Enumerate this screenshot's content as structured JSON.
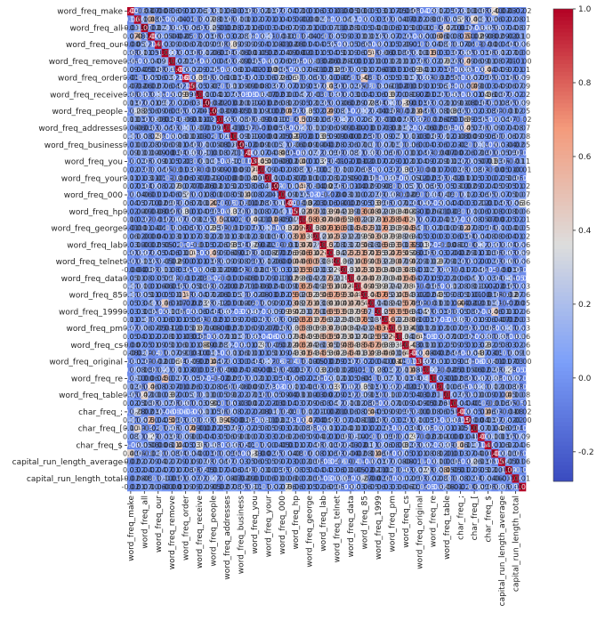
{
  "chart_data": {
    "type": "heatmap",
    "title": "",
    "colormap": "coolwarm",
    "vmin": -0.28,
    "vmax": 1.0,
    "annotated": true,
    "row_labels": [
      "word_freq_make",
      "word_freq_all",
      "word_freq_our",
      "word_freq_remove",
      "word_freq_order",
      "word_freq_receive",
      "word_freq_people",
      "word_freq_addresses",
      "word_freq_business",
      "word_freq_you",
      "word_freq_your",
      "word_freq_000",
      "word_freq_hp",
      "word_freq_george",
      "word_freq_lab",
      "word_freq_telnet",
      "word_freq_data",
      "word_freq_85",
      "word_freq_1999",
      "word_freq_pm",
      "word_freq_cs",
      "word_freq_original",
      "word_freq_re",
      "word_freq_table",
      "char_freq_;",
      "char_freq_[",
      "char_freq_$",
      "capital_run_length_average",
      "capital_run_length_total"
    ],
    "col_labels": [
      "word_freq_make",
      "word_freq_all",
      "word_freq_our",
      "word_freq_remove",
      "word_freq_order",
      "word_freq_receive",
      "word_freq_people",
      "word_freq_addresses",
      "word_freq_business",
      "word_freq_you",
      "word_freq_your",
      "word_freq_000",
      "word_freq_hp",
      "word_freq_george",
      "word_freq_lab",
      "word_freq_telnet",
      "word_freq_data",
      "word_freq_85",
      "word_freq_1999",
      "word_freq_pm",
      "word_freq_cs",
      "word_freq_original",
      "word_freq_re",
      "word_freq_table",
      "char_freq_;",
      "char_freq_[",
      "char_freq_$",
      "capital_run_length_average",
      "capital_run_length_total"
    ],
    "n_cells": 58,
    "diagonal_value": 1.0,
    "correlated_block": {
      "from_label": "word_freq_hp",
      "to_label": "word_freq_cs",
      "typical_value": 0.55
    },
    "colorbar_ticks": [
      "1.0",
      "0.8",
      "0.6",
      "0.4",
      "0.2",
      "0.0",
      "-0.2"
    ],
    "colorbar_tick_values": [
      1.0,
      0.8,
      0.6,
      0.4,
      0.2,
      0.0,
      -0.2
    ],
    "colors": {
      "low": "#3b4cc0",
      "mid": "#dddddd",
      "high": "#b40426"
    }
  }
}
